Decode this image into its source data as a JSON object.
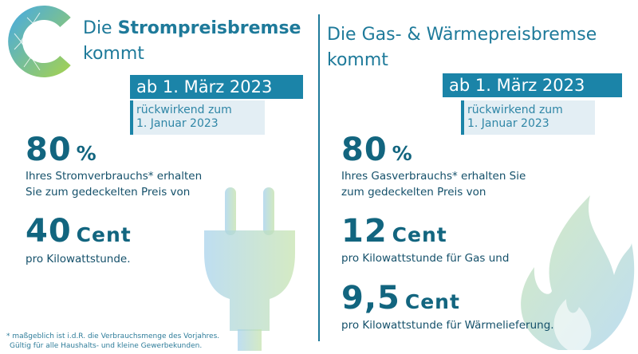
{
  "left": {
    "title_prefix": "Die ",
    "title_bold": "Strompreisbremse",
    "title_line2": "kommt",
    "date": "ab 1. März 2023",
    "retro_line1": "rückwirkend zum",
    "retro_line2": "1. Januar 2023",
    "percent_value": "80",
    "percent_unit": "%",
    "desc_line1": "Ihres Stromverbrauchs* erhalten",
    "desc_line2": "Sie zum gedeckelten Preis von",
    "price_value": "40",
    "price_unit": "Cent",
    "price_desc": "pro Kilowattstunde.",
    "footnote_line1": "* maßgeblich ist i.d.R. die Verbrauchsmenge des Vorjahres.",
    "footnote_line2": "Gültig für alle Haushalts- und kleine Gewerbekunden."
  },
  "right": {
    "title_line1": "Die Gas- & Wärmepreisbremse",
    "title_line2": "kommt",
    "date": "ab 1. März 2023",
    "retro_line1": "rückwirkend zum",
    "retro_line2": "1. Januar 2023",
    "percent_value": "80",
    "percent_unit": "%",
    "desc_line1": "Ihres Gasverbrauchs* erhalten Sie",
    "desc_line2": "zum gedeckelten Preis von",
    "gas_price_value": "12",
    "gas_price_unit": "Cent",
    "gas_price_desc": "pro Kilowattstunde für Gas und",
    "heat_price_value": "9,5",
    "heat_price_unit": "Cent",
    "heat_price_desc": "pro Kilowattstunde für Wärmelieferung."
  },
  "colors": {
    "brand_blue": "#1b84a8",
    "dark_teal": "#12657f",
    "light_box": "#e3eef4",
    "icon_blue": "#a9d3ec",
    "icon_green": "#c6e3b0"
  },
  "icons": [
    "logo-c-icon",
    "plug-icon",
    "flame-icon"
  ]
}
